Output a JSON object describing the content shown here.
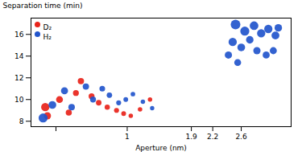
{
  "chart_data": {
    "type": "scatter",
    "xlabel": "Aperture (nm)",
    "ylabel": "Separation time (min)",
    "xlim": [
      -0.35,
      3.3
    ],
    "ylim": [
      7.5,
      17.5
    ],
    "xticks": [
      {
        "value": 0.0,
        "label": ""
      },
      1,
      1.9,
      2.2,
      2.6
    ],
    "yticks": [
      8,
      10,
      12,
      14,
      16
    ],
    "legend": "upper left",
    "series": [
      {
        "name": "D₂",
        "color": "#e8231a",
        "marker": "circle",
        "x": [
          -0.15,
          -0.12,
          0.05,
          0.18,
          0.35,
          0.28,
          0.5,
          0.6,
          0.72,
          0.85,
          0.95,
          1.05,
          1.18,
          1.32
        ],
        "values": [
          9.3,
          8.5,
          10.0,
          8.8,
          11.7,
          10.6,
          10.3,
          9.7,
          9.3,
          9.0,
          8.7,
          8.5,
          9.1,
          10.0
        ],
        "sizes": [
          55,
          42,
          38,
          30,
          32,
          28,
          28,
          25,
          22,
          20,
          18,
          16,
          16,
          16
        ]
      },
      {
        "name": "H₂",
        "color": "#2255cc",
        "marker": "circle",
        "x": [
          -0.18,
          -0.05,
          0.12,
          0.22,
          0.42,
          0.52,
          0.65,
          0.75,
          0.88,
          0.98,
          1.08,
          1.22,
          1.35,
          2.52,
          2.65,
          2.78,
          2.88,
          2.98,
          3.08,
          3.12,
          2.48,
          2.6,
          2.72,
          2.82,
          2.95,
          3.05,
          2.42,
          2.55
        ],
        "values": [
          8.3,
          9.5,
          10.8,
          9.3,
          11.2,
          10.0,
          11.0,
          10.4,
          9.7,
          10.0,
          10.5,
          9.8,
          9.2,
          16.9,
          16.3,
          16.8,
          16.1,
          16.5,
          15.9,
          16.6,
          15.3,
          14.8,
          15.5,
          14.5,
          14.1,
          14.5,
          14.1,
          13.4
        ],
        "sizes": [
          65,
          48,
          40,
          34,
          32,
          28,
          26,
          24,
          20,
          18,
          17,
          16,
          15,
          75,
          65,
          60,
          55,
          55,
          50,
          45,
          55,
          48,
          45,
          42,
          40,
          40,
          42,
          38
        ]
      }
    ]
  }
}
